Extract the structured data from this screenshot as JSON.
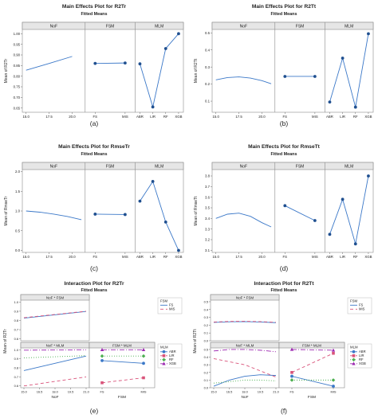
{
  "chart_data": [
    {
      "id": "a",
      "type": "main_effects_line",
      "title": "Main Effects Plot for R2Tr",
      "subtitle": "Fitted Means",
      "ylabel": "Mean of R2Tr",
      "ylim": [
        0.63,
        1.02
      ],
      "yticks": [
        "0.65",
        "0.70",
        "0.75",
        "0.80",
        "0.85",
        "0.90",
        "0.95",
        "1.00"
      ],
      "yvals": [
        0.65,
        0.7,
        0.75,
        0.8,
        0.85,
        0.9,
        0.95,
        1.0
      ],
      "caption": "(a)",
      "panels": [
        {
          "name": "NoF",
          "kind": "curve",
          "x": [
            15.0,
            17.5,
            20.0
          ],
          "y": [
            0.828,
            0.86,
            0.893
          ],
          "xticks": [
            "15.0",
            "17.5",
            "20.0"
          ]
        },
        {
          "name": "FSM",
          "kind": "cat",
          "categories": [
            "FS",
            "MIS"
          ],
          "values": [
            0.86,
            0.862
          ]
        },
        {
          "name": "MLM",
          "kind": "cat",
          "categories": [
            "ABR",
            "LIR",
            "RF",
            "XGB"
          ],
          "values": [
            0.858,
            0.655,
            0.93,
            1.0
          ]
        }
      ]
    },
    {
      "id": "b",
      "type": "main_effects_line",
      "title": "Main Effects Plot for R2Tt",
      "subtitle": "Fitted Means",
      "ylabel": "Mean of R2Tt",
      "ylim": [
        0.035,
        0.52
      ],
      "yticks": [
        "0.1",
        "0.2",
        "0.3",
        "0.4",
        "0.5"
      ],
      "yvals": [
        0.1,
        0.2,
        0.3,
        0.4,
        0.5
      ],
      "caption": "(b)",
      "panels": [
        {
          "name": "NoF",
          "kind": "curve",
          "x": [
            15.0,
            16.25,
            17.5,
            18.75,
            20.0,
            21.0
          ],
          "y": [
            0.225,
            0.238,
            0.242,
            0.235,
            0.22,
            0.202
          ],
          "xticks": [
            "15.0",
            "17.5",
            "20.0"
          ]
        },
        {
          "name": "FSM",
          "kind": "cat",
          "categories": [
            "FS",
            "MIS"
          ],
          "values": [
            0.245,
            0.245
          ]
        },
        {
          "name": "MLM",
          "kind": "cat",
          "categories": [
            "ABR",
            "LIR",
            "RF",
            "XGB"
          ],
          "values": [
            0.095,
            0.352,
            0.065,
            0.495
          ]
        }
      ]
    },
    {
      "id": "c",
      "type": "main_effects_line",
      "title": "Main Effects Plot for RmseTr",
      "subtitle": "Fitted Means",
      "ylabel": "Mean of RmseTr",
      "ylim": [
        -0.05,
        2.05
      ],
      "yticks": [
        "0.0",
        "0.5",
        "1.0",
        "1.5",
        "2.0"
      ],
      "yvals": [
        0.0,
        0.5,
        1.0,
        1.5,
        2.0
      ],
      "caption": "(c)",
      "panels": [
        {
          "name": "NoF",
          "kind": "curve",
          "x": [
            15.0,
            16.5,
            18.0,
            19.5,
            21.0
          ],
          "y": [
            1.0,
            0.97,
            0.92,
            0.86,
            0.78
          ],
          "xticks": [
            "15.0",
            "17.5",
            "20.0"
          ]
        },
        {
          "name": "FSM",
          "kind": "cat",
          "categories": [
            "FS",
            "MIS"
          ],
          "values": [
            0.92,
            0.91
          ]
        },
        {
          "name": "MLM",
          "kind": "cat",
          "categories": [
            "ABR",
            "LIR",
            "RF",
            "XGB"
          ],
          "values": [
            1.25,
            1.75,
            0.72,
            0.0
          ]
        }
      ]
    },
    {
      "id": "d",
      "type": "main_effects_line",
      "title": "Main Effects Plot for RmseTt",
      "subtitle": "Fitted Means",
      "ylabel": "Mean of RmseTt",
      "ylim": [
        3.08,
        3.86
      ],
      "yticks": [
        "3.1",
        "3.2",
        "3.3",
        "3.4",
        "3.5",
        "3.6",
        "3.7",
        "3.8"
      ],
      "yvals": [
        3.1,
        3.2,
        3.3,
        3.4,
        3.5,
        3.6,
        3.7,
        3.8
      ],
      "caption": "(d)",
      "panels": [
        {
          "name": "NoF",
          "kind": "curve",
          "x": [
            15.0,
            16.25,
            17.5,
            18.75,
            20.0,
            21.0
          ],
          "y": [
            3.4,
            3.44,
            3.45,
            3.42,
            3.36,
            3.32
          ],
          "xticks": [
            "15.0",
            "17.5",
            "20.0"
          ]
        },
        {
          "name": "FSM",
          "kind": "cat",
          "categories": [
            "FS",
            "MIS"
          ],
          "values": [
            3.52,
            3.38
          ]
        },
        {
          "name": "MLM",
          "kind": "cat",
          "categories": [
            "ABR",
            "LIR",
            "RF",
            "XGB"
          ],
          "values": [
            3.25,
            3.58,
            3.16,
            3.8
          ]
        }
      ]
    },
    {
      "id": "e",
      "type": "interaction_plot",
      "title": "Interaction Plot for R2Tr",
      "subtitle": "Fitted Means",
      "ylabel": "Mean of R2Tr",
      "caption": "(e)",
      "xaxis_left": {
        "label": "NoF",
        "ticks": [
          "15.0",
          "16.5",
          "18.0",
          "19.5",
          "21.0"
        ],
        "range": [
          15.0,
          21.0
        ]
      },
      "xaxis_right": {
        "label": "FSM",
        "ticks": [
          "FS",
          "MIS"
        ]
      },
      "top_panel": {
        "name": "NoF * FSM",
        "ylim": [
          0.58,
          1.02
        ],
        "yticks": [
          "0.6",
          "0.7",
          "0.8",
          "0.9",
          "1.0"
        ],
        "yvals": [
          0.6,
          0.7,
          0.8,
          0.9,
          1.0
        ],
        "legend_title": "FSM",
        "legend": [
          {
            "name": "FS",
            "color": "#3b78c8",
            "dash": ""
          },
          {
            "name": "MIS",
            "color": "#d9537a",
            "dash": "4,3"
          }
        ],
        "series": [
          {
            "name": "FS",
            "x": [
              15.0,
              21.0
            ],
            "y": [
              0.825,
              0.898
            ]
          },
          {
            "name": "MIS",
            "x": [
              15.0,
              21.0
            ],
            "y": [
              0.83,
              0.9
            ]
          }
        ]
      },
      "bottom_left": {
        "name": "NoF * MLM",
        "ylim": [
          0.58,
          1.02
        ],
        "yticks": [
          "0.6",
          "0.7",
          "0.8",
          "0.9",
          "1.0"
        ],
        "yvals": [
          0.6,
          0.7,
          0.8,
          0.9,
          1.0
        ],
        "series": [
          {
            "name": "ABR",
            "x": [
              15.0,
              21.0
            ],
            "y": [
              0.77,
              0.93
            ]
          },
          {
            "name": "LIR",
            "x": [
              15.0,
              21.0
            ],
            "y": [
              0.6,
              0.7
            ]
          },
          {
            "name": "RF",
            "x": [
              15.0,
              21.0
            ],
            "y": [
              0.91,
              0.935
            ]
          },
          {
            "name": "XGB",
            "x": [
              15.0,
              21.0
            ],
            "y": [
              0.995,
              1.0
            ]
          }
        ]
      },
      "bottom_right": {
        "name": "FSM * MLM",
        "series": [
          {
            "name": "ABR",
            "values": [
              0.88,
              0.85
            ]
          },
          {
            "name": "LIR",
            "values": [
              0.635,
              0.69
            ]
          },
          {
            "name": "RF",
            "values": [
              0.93,
              0.93
            ]
          },
          {
            "name": "XGB",
            "values": [
              1.0,
              1.0
            ]
          }
        ]
      },
      "mlm_legend_title": "MLM",
      "mlm_legend": [
        {
          "name": "ABR",
          "color": "#3b78c8",
          "dash": ""
        },
        {
          "name": "LIR",
          "color": "#d9537a",
          "dash": "4,3"
        },
        {
          "name": "RF",
          "color": "#4caf50",
          "dash": "1,2"
        },
        {
          "name": "XGB",
          "color": "#9c27b0",
          "dash": "6,2,1,2"
        }
      ]
    },
    {
      "id": "f",
      "type": "interaction_plot",
      "title": "Interaction Plot for R2Tt",
      "subtitle": "Fitted Means",
      "ylabel": "Mean of R2Tt",
      "caption": "(f)",
      "xaxis_left": {
        "label": "NoF",
        "ticks": [
          "15.0",
          "16.5",
          "18.0",
          "19.5",
          "21.0"
        ],
        "range": [
          15.0,
          21.0
        ]
      },
      "xaxis_right": {
        "label": "FSM",
        "ticks": [
          "FS",
          "MIS"
        ]
      },
      "top_panel": {
        "name": "NoF * FSM",
        "ylim": [
          0.0,
          0.52
        ],
        "yticks": [
          "0.0",
          "0.1",
          "0.2",
          "0.3",
          "0.4",
          "0.5"
        ],
        "yvals": [
          0.0,
          0.1,
          0.2,
          0.3,
          0.4,
          0.5
        ],
        "legend_title": "FSM",
        "legend": [
          {
            "name": "FS",
            "color": "#3b78c8",
            "dash": ""
          },
          {
            "name": "MIS",
            "color": "#d9537a",
            "dash": "4,3"
          }
        ],
        "series": [
          {
            "name": "FS",
            "x": [
              15.0,
              16.5,
              18.0,
              19.5,
              21.0
            ],
            "y": [
              0.235,
              0.243,
              0.245,
              0.24,
              0.232
            ]
          },
          {
            "name": "MIS",
            "x": [
              15.0,
              16.5,
              18.0,
              19.5,
              21.0
            ],
            "y": [
              0.24,
              0.248,
              0.25,
              0.245,
              0.236
            ]
          }
        ]
      },
      "bottom_left": {
        "name": "NoF * MLM",
        "ylim": [
          0.0,
          0.52
        ],
        "yticks": [
          "0.0",
          "0.1",
          "0.2",
          "0.3",
          "0.4",
          "0.5"
        ],
        "yvals": [
          0.0,
          0.1,
          0.2,
          0.3,
          0.4,
          0.5
        ],
        "series": [
          {
            "name": "ABR",
            "x": [
              15.0,
              16.5,
              18.0,
              19.5,
              21.0
            ],
            "y": [
              0.02,
              0.1,
              0.15,
              0.17,
              0.16
            ]
          },
          {
            "name": "LIR",
            "x": [
              15.0,
              16.5,
              18.0,
              19.5,
              21.0
            ],
            "y": [
              0.38,
              0.34,
              0.3,
              0.22,
              0.14
            ]
          },
          {
            "name": "RF",
            "x": [
              15.0,
              16.5,
              18.0,
              19.5,
              21.0
            ],
            "y": [
              0.06,
              0.08,
              0.1,
              0.1,
              0.09
            ]
          },
          {
            "name": "XGB",
            "x": [
              15.0,
              16.5,
              18.0,
              19.5,
              21.0
            ],
            "y": [
              0.48,
              0.5,
              0.5,
              0.49,
              0.47
            ]
          }
        ]
      },
      "bottom_right": {
        "name": "FSM * MLM",
        "series": [
          {
            "name": "ABR",
            "values": [
              0.15,
              0.02
            ]
          },
          {
            "name": "LIR",
            "values": [
              0.2,
              0.45
            ]
          },
          {
            "name": "RF",
            "values": [
              0.1,
              0.1
            ]
          },
          {
            "name": "XGB",
            "values": [
              0.5,
              0.49
            ]
          }
        ]
      },
      "mlm_legend_title": "MLM",
      "mlm_legend": [
        {
          "name": "ABR",
          "color": "#3b78c8",
          "dash": ""
        },
        {
          "name": "LIR",
          "color": "#d9537a",
          "dash": "4,3"
        },
        {
          "name": "RF",
          "color": "#4caf50",
          "dash": "1,2"
        },
        {
          "name": "XGB",
          "color": "#9c27b0",
          "dash": "6,2,1,2"
        }
      ]
    }
  ]
}
